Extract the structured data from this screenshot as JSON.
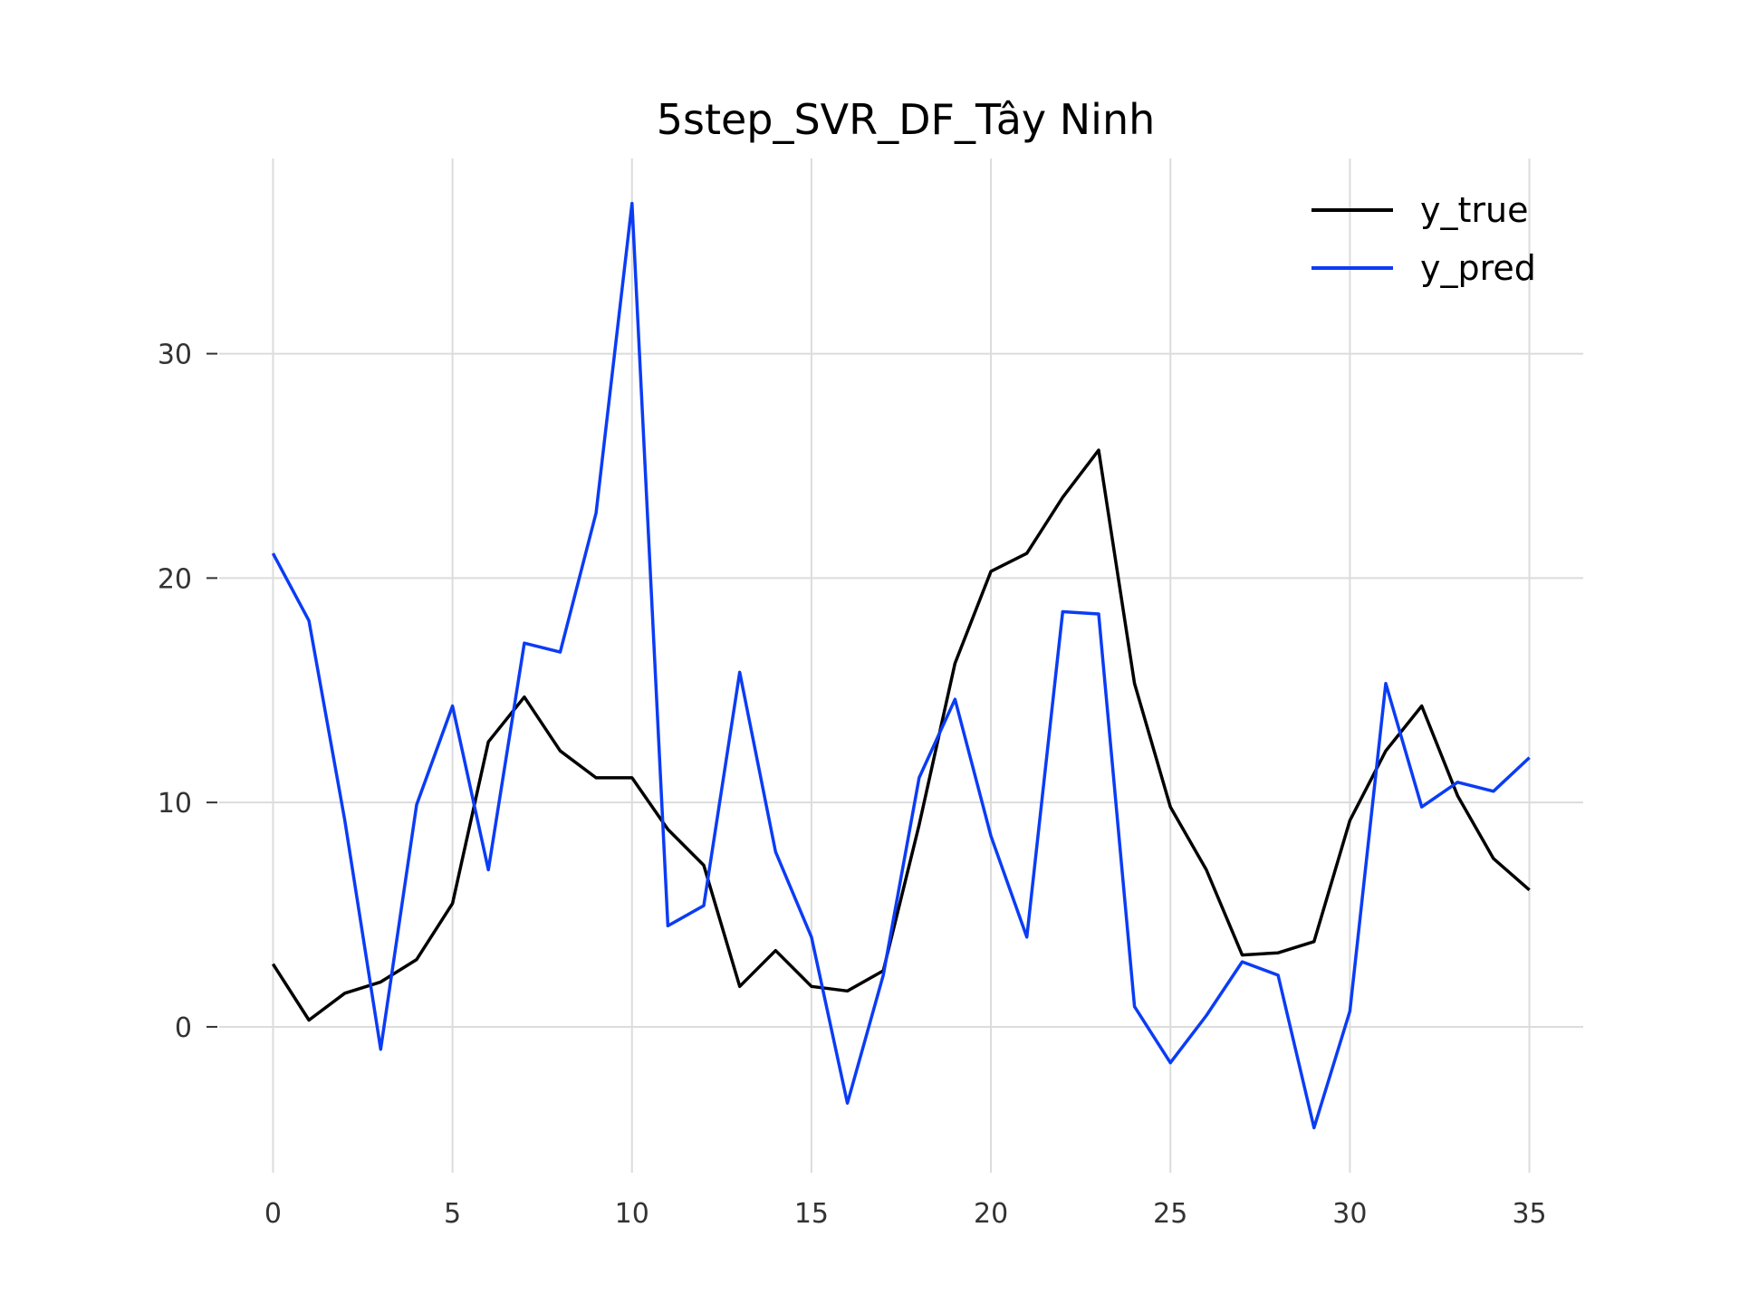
{
  "chart_data": {
    "type": "line",
    "title": "5step_SVR_DF_Tây Ninh",
    "xlabel": "",
    "ylabel": "",
    "xlim": [
      -1.5,
      36.5
    ],
    "ylim": [
      -6.5,
      38.7
    ],
    "xticks": [
      0,
      5,
      10,
      15,
      20,
      25,
      30,
      35
    ],
    "yticks": [
      0,
      10,
      20,
      30
    ],
    "grid": true,
    "legend_position": "top-right",
    "x": [
      0,
      1,
      2,
      3,
      4,
      5,
      6,
      7,
      8,
      9,
      10,
      11,
      12,
      13,
      14,
      15,
      16,
      17,
      18,
      19,
      20,
      21,
      22,
      23,
      24,
      25,
      26,
      27,
      28,
      29,
      30,
      31,
      32,
      33,
      34,
      35
    ],
    "series": [
      {
        "name": "y_true",
        "color": "#000000",
        "values": [
          2.8,
          0.3,
          1.5,
          2.0,
          3.0,
          5.5,
          12.7,
          14.7,
          12.3,
          11.1,
          11.1,
          8.8,
          7.2,
          1.8,
          3.4,
          1.8,
          1.6,
          2.5,
          9.0,
          16.2,
          20.3,
          21.1,
          23.6,
          25.7,
          15.3,
          9.8,
          7.0,
          3.2,
          3.3,
          3.8,
          9.2,
          12.3,
          14.3,
          10.3,
          7.5,
          6.1
        ]
      },
      {
        "name": "y_pred",
        "color": "#0b3cf5",
        "values": [
          21.1,
          18.1,
          9.2,
          -1.0,
          9.9,
          14.3,
          7.0,
          17.1,
          16.7,
          22.9,
          36.7,
          4.5,
          5.4,
          15.8,
          7.8,
          4.0,
          -3.4,
          2.3,
          11.1,
          14.6,
          8.5,
          4.0,
          18.5,
          18.4,
          0.9,
          -1.6,
          0.5,
          2.9,
          2.3,
          -4.5,
          0.7,
          15.3,
          9.8,
          10.9,
          10.5,
          12.0
        ]
      }
    ]
  }
}
